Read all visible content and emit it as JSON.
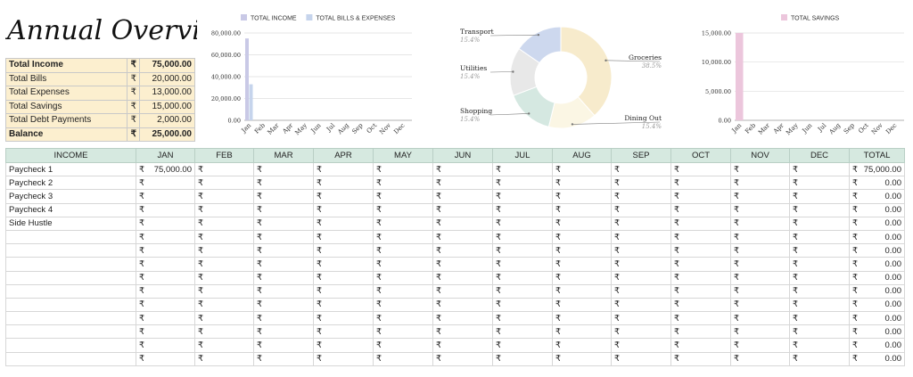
{
  "title": "Annual Overview",
  "currency_symbol": "₹",
  "summary": [
    {
      "label": "Total Income",
      "value": "75,000.00",
      "bold": true
    },
    {
      "label": "Total Bills",
      "value": "20,000.00",
      "bold": false
    },
    {
      "label": "Total Expenses",
      "value": "13,000.00",
      "bold": false
    },
    {
      "label": "Total Savings",
      "value": "15,000.00",
      "bold": false
    },
    {
      "label": "Total Debt Payments",
      "value": "2,000.00",
      "bold": false
    },
    {
      "label": "Balance",
      "value": "25,000.00",
      "bold": true
    }
  ],
  "chart_data": [
    {
      "type": "bar",
      "categories": [
        "Jan",
        "Feb",
        "Mar",
        "Apr",
        "May",
        "Jun",
        "Jul",
        "Aug",
        "Sep",
        "Oct",
        "Nov",
        "Dec"
      ],
      "series": [
        {
          "name": "TOTAL INCOME",
          "color": "#c9c9e6",
          "values": [
            75000,
            0,
            0,
            0,
            0,
            0,
            0,
            0,
            0,
            0,
            0,
            0
          ]
        },
        {
          "name": "TOTAL BILLS & EXPENSES",
          "color": "#c6d4ec",
          "values": [
            33000,
            0,
            0,
            0,
            0,
            0,
            0,
            0,
            0,
            0,
            0,
            0
          ]
        }
      ],
      "yticks": [
        "0.00",
        "20,000.00",
        "40,000.00",
        "60,000.00",
        "80,000.00"
      ],
      "ylim": [
        0,
        80000
      ],
      "grid": true,
      "legend": "top"
    },
    {
      "type": "pie",
      "donut": true,
      "slices": [
        {
          "label": "Groceries",
          "pct": "38.5%",
          "value": 38.5,
          "color": "#f7ebcc"
        },
        {
          "label": "Dining Out",
          "pct": "15.4%",
          "value": 15.4,
          "color": "#fbf6e4"
        },
        {
          "label": "Shopping",
          "pct": "15.4%",
          "value": 15.4,
          "color": "#d5e8e1"
        },
        {
          "label": "Utilities",
          "pct": "15.4%",
          "value": 15.4,
          "color": "#e8e8e8"
        },
        {
          "label": "Transport",
          "pct": "15.4%",
          "value": 15.4,
          "color": "#cdd8ee"
        }
      ]
    },
    {
      "type": "bar",
      "categories": [
        "Jan",
        "Feb",
        "Mar",
        "Apr",
        "May",
        "Jun",
        "Jul",
        "Aug",
        "Sep",
        "Oct",
        "Nov",
        "Dec"
      ],
      "series": [
        {
          "name": "TOTAL SAVINGS",
          "color": "#ecc6dc",
          "values": [
            15000,
            0,
            0,
            0,
            0,
            0,
            0,
            0,
            0,
            0,
            0,
            0
          ]
        }
      ],
      "yticks": [
        "0.00",
        "5,000.00",
        "10,000.00",
        "15,000.00"
      ],
      "ylim": [
        0,
        15000
      ],
      "grid": true,
      "legend": "top"
    }
  ],
  "income_table": {
    "headers": [
      "INCOME",
      "JAN",
      "FEB",
      "MAR",
      "APR",
      "MAY",
      "JUN",
      "JUL",
      "AUG",
      "SEP",
      "OCT",
      "NOV",
      "DEC",
      "TOTAL"
    ],
    "rows": [
      {
        "label": "Paycheck 1",
        "jan": "75,000.00",
        "total": "75,000.00"
      },
      {
        "label": "Paycheck 2",
        "jan": "",
        "total": "0.00"
      },
      {
        "label": "Paycheck 3",
        "jan": "",
        "total": "0.00"
      },
      {
        "label": "Paycheck 4",
        "jan": "",
        "total": "0.00"
      },
      {
        "label": "Side Hustle",
        "jan": "",
        "total": "0.00"
      },
      {
        "label": "",
        "jan": "",
        "total": "0.00"
      },
      {
        "label": "",
        "jan": "",
        "total": "0.00"
      },
      {
        "label": "",
        "jan": "",
        "total": "0.00"
      },
      {
        "label": "",
        "jan": "",
        "total": "0.00"
      },
      {
        "label": "",
        "jan": "",
        "total": "0.00"
      },
      {
        "label": "",
        "jan": "",
        "total": "0.00"
      },
      {
        "label": "",
        "jan": "",
        "total": "0.00"
      },
      {
        "label": "",
        "jan": "",
        "total": "0.00"
      },
      {
        "label": "",
        "jan": "",
        "total": "0.00"
      },
      {
        "label": "",
        "jan": "",
        "total": "0.00"
      }
    ]
  }
}
